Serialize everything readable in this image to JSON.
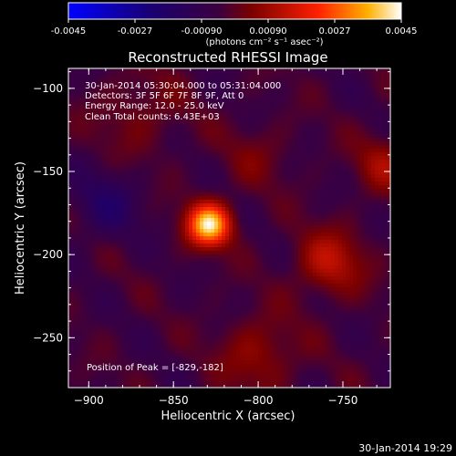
{
  "chart_data": {
    "type": "heatmap",
    "title": "Reconstructed RHESSI Image",
    "xlabel": "Heliocentric X (arcsec)",
    "ylabel": "Heliocentric Y (arcsec)",
    "xlim": [
      -912,
      -722
    ],
    "ylim": [
      -280,
      -88
    ],
    "x_ticks": [
      -900,
      -850,
      -800,
      -750
    ],
    "y_ticks": [
      -100,
      -150,
      -200,
      -250
    ],
    "colorbar": {
      "range": [
        -0.0045,
        0.0045
      ],
      "ticks": [
        "-0.0045",
        "-0.0027",
        "-0.00090",
        "0.00090",
        "0.0027",
        "0.0045"
      ],
      "tick_values": [
        -0.0045,
        -0.0027,
        -0.0009,
        0.0009,
        0.0027,
        0.0045
      ],
      "unit_label": "(photons cm⁻² s⁻¹ asec⁻²)"
    },
    "annotations": [
      "30-Jan-2014 05:30:04.000 to 05:31:04.000",
      "Detectors: 3F 5F 6F 7F 8F 9F, Att 0",
      "Energy Range: 12.0 - 25.0 keV",
      "Clean     Total counts: 6.43E+03"
    ],
    "peak_label": "Position of Peak = [-829,-182]",
    "peak": [
      -829,
      -182
    ],
    "sources": [
      {
        "x": -829,
        "y": -182,
        "peak": 0.0045,
        "sigma": 9
      },
      {
        "x": -758,
        "y": -205,
        "peak": 0.0016,
        "sigma": 14
      },
      {
        "x": -725,
        "y": -145,
        "peak": 0.0012,
        "sigma": 12
      },
      {
        "x": -800,
        "y": -260,
        "peak": 0.0011,
        "sigma": 16
      },
      {
        "x": -870,
        "y": -115,
        "peak": 0.0007,
        "sigma": 18
      },
      {
        "x": -890,
        "y": -170,
        "peak": -0.0011,
        "sigma": 14
      },
      {
        "x": -800,
        "y": -140,
        "peak": 0.0006,
        "sigma": 14
      }
    ],
    "timestamp": "30-Jan-2014 19:29"
  }
}
